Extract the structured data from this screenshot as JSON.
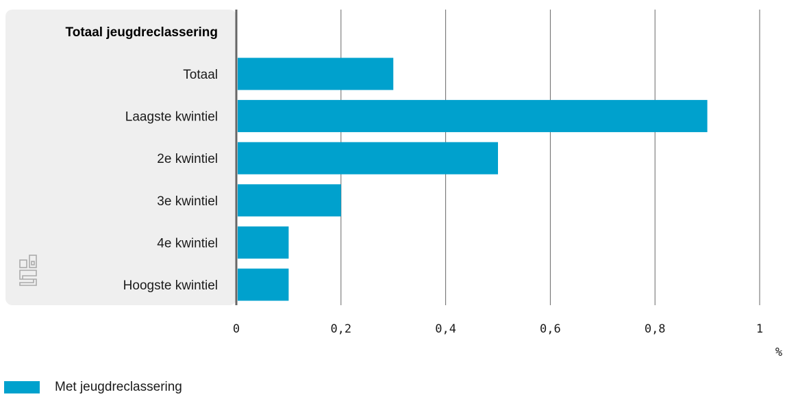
{
  "chart_data": {
    "type": "bar",
    "orientation": "horizontal",
    "group_header": "Totaal jeugdreclassering",
    "categories": [
      "Totaal",
      "Laagste kwintiel",
      "2e kwintiel",
      "3e kwintiel",
      "4e kwintiel",
      "Hoogste kwintiel"
    ],
    "series": [
      {
        "name": "Met jeugdreclassering",
        "values": [
          0.3,
          0.9,
          0.5,
          0.2,
          0.1,
          0.1
        ]
      }
    ],
    "xlim": [
      0,
      1
    ],
    "xticks": [
      "0",
      "0,2",
      "0,4",
      "0,6",
      "0,8",
      "1"
    ],
    "xunit": "%",
    "grid": true,
    "legend_position": "bottom-left",
    "colors": {
      "bar": "#00a1cd",
      "label_panel": "#efefef",
      "grid": "#666666",
      "axis": "#666666",
      "logo": "#aaaaaa"
    }
  },
  "legend": {
    "label": "Met jeugdreclassering"
  },
  "logo": {
    "icon": "cbs-logo-icon"
  }
}
